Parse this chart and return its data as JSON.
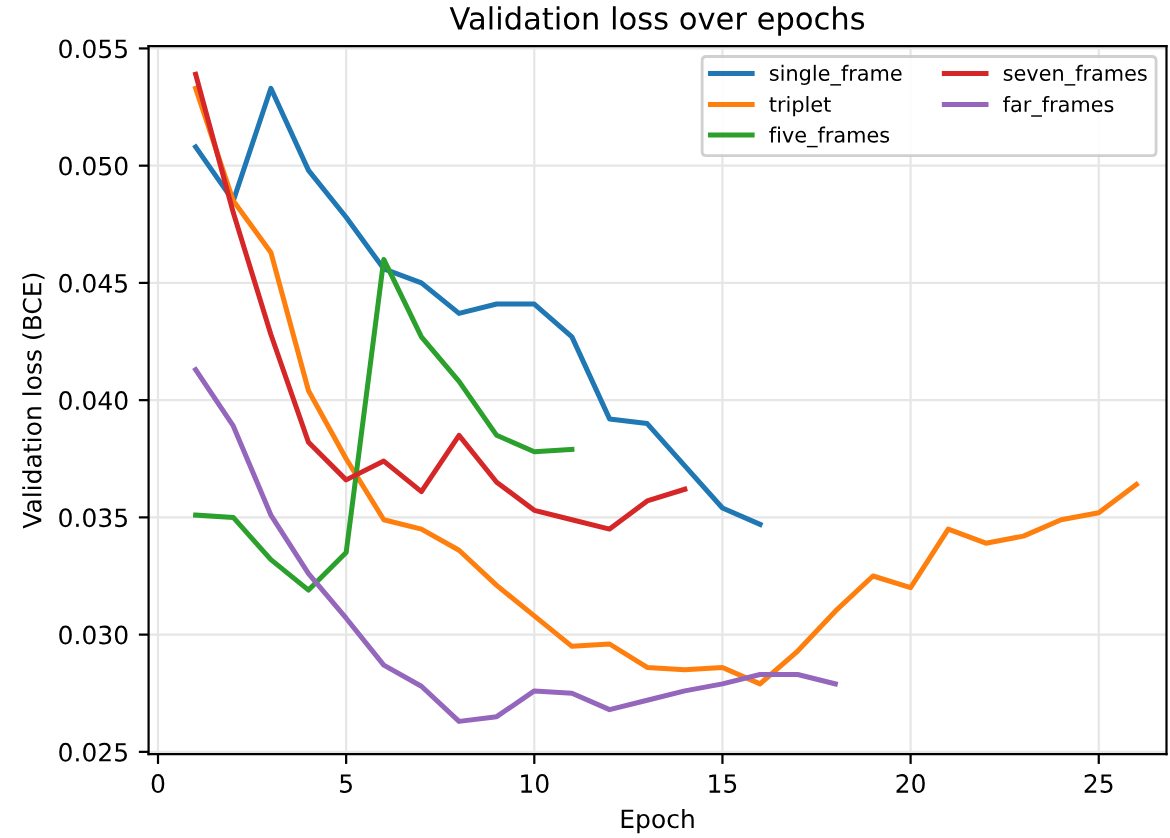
{
  "chart_data": {
    "type": "line",
    "title": "Validation loss over epochs",
    "xlabel": "Epoch",
    "ylabel": "Validation loss (BCE)",
    "series": [
      {
        "name": "single_frame",
        "color": "#1f77b4",
        "x": [
          1,
          2,
          3,
          4,
          5,
          6,
          7,
          8,
          9,
          10,
          11,
          12,
          13,
          14,
          15,
          16
        ],
        "values": [
          0.0508,
          0.0485,
          0.0533,
          0.0498,
          0.0478,
          0.0456,
          0.045,
          0.0437,
          0.0441,
          0.0441,
          0.0427,
          0.0392,
          0.039,
          0.0372,
          0.0354,
          0.0347
        ]
      },
      {
        "name": "triplet",
        "color": "#ff7f0e",
        "x": [
          1,
          2,
          3,
          4,
          5,
          6,
          7,
          8,
          9,
          10,
          11,
          12,
          13,
          14,
          15,
          16,
          17,
          18,
          19,
          20,
          21,
          22,
          23,
          24,
          25,
          26
        ],
        "values": [
          0.0533,
          0.0485,
          0.0463,
          0.0404,
          0.0375,
          0.0349,
          0.0345,
          0.0336,
          0.0321,
          0.0308,
          0.0295,
          0.0296,
          0.0286,
          0.0285,
          0.0286,
          0.0279,
          0.0293,
          0.031,
          0.0325,
          0.032,
          0.0345,
          0.0339,
          0.0342,
          0.0349,
          0.0352,
          0.0364
        ]
      },
      {
        "name": "five_frames",
        "color": "#2ca02c",
        "x": [
          1,
          2,
          3,
          4,
          5,
          6,
          7,
          8,
          9,
          10,
          11
        ],
        "values": [
          0.0351,
          0.035,
          0.0332,
          0.0319,
          0.0335,
          0.046,
          0.0427,
          0.0408,
          0.0385,
          0.0378,
          0.0379
        ]
      },
      {
        "name": "seven_frames",
        "color": "#d62728",
        "x": [
          1,
          2,
          3,
          4,
          5,
          6,
          7,
          8,
          9,
          10,
          11,
          12,
          13,
          14
        ],
        "values": [
          0.0539,
          0.048,
          0.0428,
          0.0382,
          0.0366,
          0.0374,
          0.0361,
          0.0385,
          0.0365,
          0.0353,
          0.0349,
          0.0345,
          0.0357,
          0.0362
        ]
      },
      {
        "name": "far_frames",
        "color": "#9467bd",
        "x": [
          1,
          2,
          3,
          4,
          5,
          6,
          7,
          8,
          9,
          10,
          11,
          12,
          13,
          14,
          15,
          16,
          17,
          18
        ],
        "values": [
          0.0413,
          0.0389,
          0.0351,
          0.0326,
          0.0307,
          0.0287,
          0.0278,
          0.0263,
          0.0265,
          0.0276,
          0.0275,
          0.0268,
          0.0272,
          0.0276,
          0.0279,
          0.0283,
          0.0283,
          0.0279
        ]
      }
    ],
    "xlim": [
      -0.25,
      26.8
    ],
    "xticks": [
      0,
      5,
      10,
      15,
      20,
      25
    ],
    "ylim": [
      0.0249,
      0.0551
    ],
    "yticks": [
      {
        "value": 0.025,
        "label": "0.025"
      },
      {
        "value": 0.03,
        "label": "0.030"
      },
      {
        "value": 0.035,
        "label": "0.035"
      },
      {
        "value": 0.04,
        "label": "0.040"
      },
      {
        "value": 0.045,
        "label": "0.045"
      },
      {
        "value": 0.05,
        "label": "0.050"
      },
      {
        "value": 0.055,
        "label": "0.055"
      }
    ],
    "grid": true,
    "legend": "top right",
    "marker": "none",
    "line_style": "solid"
  }
}
